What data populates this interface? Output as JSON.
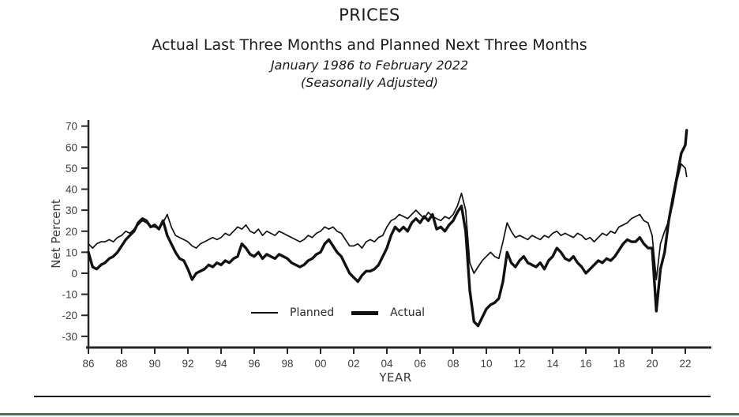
{
  "header": {
    "title": "PRICES",
    "subtitle": "Actual Last Three Months and Planned Next Three Months",
    "date_range": "January 1986 to February 2022",
    "adjustment_note": "(Seasonally Adjusted)"
  },
  "chart_data": {
    "type": "line",
    "title": "PRICES",
    "xlabel": "YEAR",
    "ylabel": "Net Percent",
    "ylim": [
      -36,
      72
    ],
    "xlim": [
      1986,
      2022.6
    ],
    "grid": false,
    "legend_position": "inside-bottom-center",
    "y_ticks": [
      70,
      60,
      50,
      40,
      30,
      20,
      10,
      0,
      -10,
      -20,
      -30
    ],
    "x_tick_values": [
      1986,
      1988,
      1990,
      1992,
      1994,
      1996,
      1998,
      2000,
      2002,
      2004,
      2006,
      2008,
      2010,
      2012,
      2014,
      2016,
      2018,
      2020,
      2022
    ],
    "x_tick_labels": [
      "86",
      "88",
      "90",
      "92",
      "94",
      "96",
      "98",
      "00",
      "02",
      "04",
      "06",
      "08",
      "10",
      "12",
      "14",
      "16",
      "18",
      "20",
      "22"
    ],
    "colors": {
      "line": "#111111",
      "axis": "#262626",
      "tick_label": "#3f3f3f"
    },
    "x": [
      1986,
      1986.25,
      1986.5,
      1986.75,
      1987,
      1987.25,
      1987.5,
      1987.75,
      1988,
      1988.25,
      1988.5,
      1988.75,
      1989,
      1989.25,
      1989.5,
      1989.75,
      1990,
      1990.25,
      1990.5,
      1990.75,
      1991,
      1991.25,
      1991.5,
      1991.75,
      1992,
      1992.25,
      1992.5,
      1992.75,
      1993,
      1993.25,
      1993.5,
      1993.75,
      1994,
      1994.25,
      1994.5,
      1994.75,
      1995,
      1995.25,
      1995.5,
      1995.75,
      1996,
      1996.25,
      1996.5,
      1996.75,
      1997,
      1997.25,
      1997.5,
      1997.75,
      1998,
      1998.25,
      1998.5,
      1998.75,
      1999,
      1999.25,
      1999.5,
      1999.75,
      2000,
      2000.25,
      2000.5,
      2000.75,
      2001,
      2001.25,
      2001.5,
      2001.75,
      2002,
      2002.25,
      2002.5,
      2002.75,
      2003,
      2003.25,
      2003.5,
      2003.75,
      2004,
      2004.25,
      2004.5,
      2004.75,
      2005,
      2005.25,
      2005.5,
      2005.75,
      2006,
      2006.25,
      2006.5,
      2006.75,
      2007,
      2007.25,
      2007.5,
      2007.75,
      2008,
      2008.25,
      2008.5,
      2008.75,
      2009,
      2009.25,
      2009.5,
      2009.75,
      2010,
      2010.25,
      2010.5,
      2010.75,
      2011,
      2011.25,
      2011.5,
      2011.75,
      2012,
      2012.25,
      2012.5,
      2012.75,
      2013,
      2013.25,
      2013.5,
      2013.75,
      2014,
      2014.25,
      2014.5,
      2014.75,
      2015,
      2015.25,
      2015.5,
      2015.75,
      2016,
      2016.25,
      2016.5,
      2016.75,
      2017,
      2017.25,
      2017.5,
      2017.75,
      2018,
      2018.25,
      2018.5,
      2018.75,
      2019,
      2019.25,
      2019.5,
      2019.75,
      2020,
      2020.25,
      2020.5,
      2020.75,
      2021,
      2021.25,
      2021.5,
      2021.75,
      2022,
      2022.08
    ],
    "series": [
      {
        "name": "Planned",
        "style": "thin",
        "values": [
          14,
          12,
          14,
          15,
          15,
          16,
          15,
          17,
          18,
          20,
          19,
          21,
          23,
          25,
          24,
          22,
          22,
          21,
          24,
          28,
          22,
          18,
          17,
          16,
          15,
          13,
          12,
          14,
          15,
          16,
          17,
          16,
          17,
          19,
          18,
          20,
          22,
          21,
          23,
          20,
          19,
          21,
          18,
          20,
          19,
          18,
          20,
          19,
          18,
          17,
          16,
          15,
          16,
          18,
          17,
          19,
          20,
          22,
          21,
          22,
          20,
          19,
          16,
          13,
          13,
          14,
          12,
          15,
          16,
          15,
          17,
          18,
          22,
          25,
          26,
          28,
          27,
          26,
          28,
          30,
          28,
          26,
          29,
          27,
          26,
          25,
          27,
          26,
          28,
          32,
          38,
          30,
          5,
          0,
          3,
          6,
          8,
          10,
          8,
          7,
          15,
          24,
          20,
          17,
          18,
          17,
          16,
          18,
          17,
          16,
          18,
          17,
          19,
          20,
          18,
          19,
          18,
          17,
          19,
          18,
          16,
          17,
          15,
          17,
          19,
          18,
          20,
          19,
          22,
          23,
          24,
          26,
          27,
          28,
          25,
          24,
          18,
          -3,
          14,
          20,
          25,
          33,
          44,
          52,
          50,
          46
        ]
      },
      {
        "name": "Actual",
        "style": "thick",
        "values": [
          10,
          3,
          2,
          4,
          5,
          7,
          8,
          10,
          13,
          16,
          18,
          20,
          24,
          26,
          25,
          22,
          23,
          21,
          25,
          18,
          14,
          10,
          7,
          6,
          2,
          -3,
          0,
          1,
          2,
          4,
          3,
          5,
          4,
          6,
          5,
          7,
          8,
          14,
          12,
          9,
          8,
          10,
          7,
          9,
          8,
          7,
          9,
          8,
          7,
          5,
          4,
          3,
          4,
          6,
          7,
          9,
          10,
          14,
          16,
          13,
          10,
          8,
          4,
          0,
          -2,
          -4,
          -1,
          1,
          1,
          2,
          4,
          8,
          12,
          18,
          22,
          20,
          22,
          20,
          24,
          26,
          24,
          27,
          25,
          28,
          21,
          22,
          20,
          23,
          25,
          29,
          32,
          20,
          -8,
          -23,
          -25,
          -21,
          -17,
          -15,
          -14,
          -12,
          -4,
          10,
          5,
          3,
          6,
          8,
          5,
          4,
          3,
          5,
          2,
          6,
          8,
          12,
          10,
          7,
          6,
          8,
          5,
          3,
          0,
          2,
          4,
          6,
          5,
          7,
          6,
          8,
          11,
          14,
          16,
          15,
          15,
          17,
          14,
          12,
          12,
          -18,
          2,
          10,
          25,
          36,
          46,
          57,
          61,
          68
        ]
      }
    ]
  },
  "legend": {
    "planned_label": "Planned",
    "actual_label": "Actual"
  },
  "footer": {
    "divider_color": "#1a1a1a",
    "accent_bar_color": "#4d7155"
  }
}
